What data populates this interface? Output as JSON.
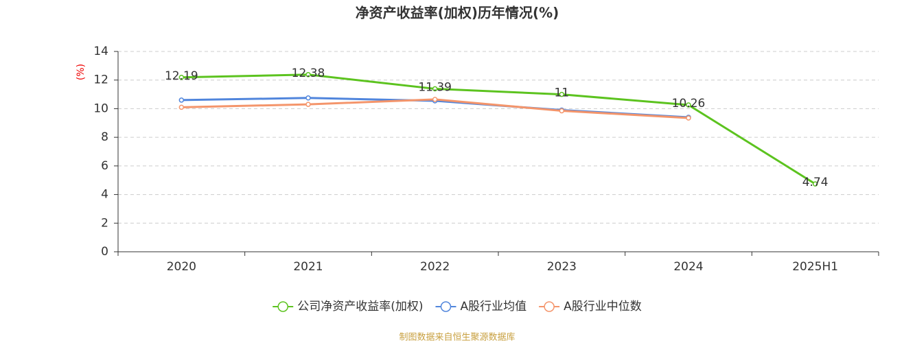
{
  "chart_data": {
    "type": "line",
    "title": "净资产收益率(加权)历年情况(%)",
    "y_label": "(%)",
    "categories": [
      "2020",
      "2021",
      "2022",
      "2023",
      "2024",
      "2025H1"
    ],
    "series": [
      {
        "name": "公司净资产收益率(加权)",
        "color": "#5cc31f",
        "values": [
          12.19,
          12.38,
          11.39,
          11,
          10.26,
          4.74
        ],
        "labels": true
      },
      {
        "name": "A股行业均值",
        "color": "#5085dc",
        "values": [
          10.6,
          10.75,
          10.55,
          9.9,
          9.4,
          null
        ],
        "labels": false
      },
      {
        "name": "A股行业中位数",
        "color": "#f4956b",
        "values": [
          10.1,
          10.3,
          10.65,
          9.85,
          9.35,
          null
        ],
        "labels": false
      }
    ],
    "ylim": [
      0,
      14
    ],
    "yticks": [
      0,
      2,
      4,
      6,
      8,
      10,
      12,
      14
    ],
    "grid": true,
    "source": "制图数据来自恒生聚源数据库"
  }
}
